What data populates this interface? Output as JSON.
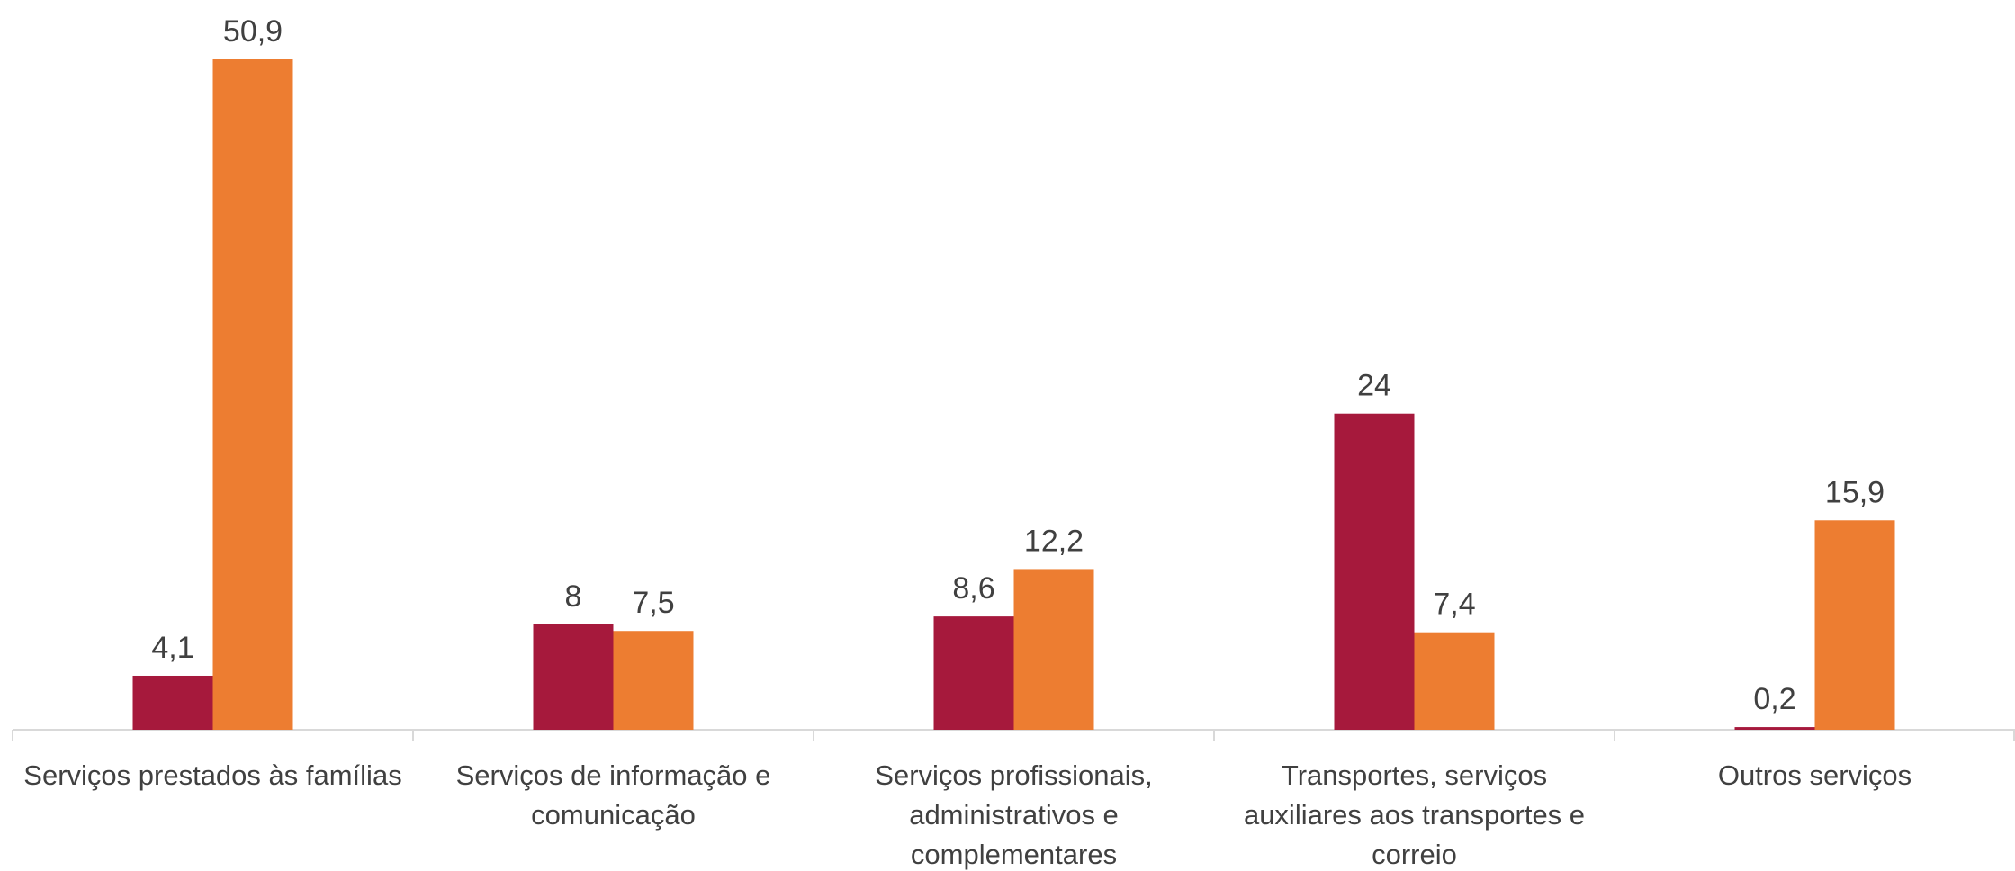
{
  "chart_data": {
    "type": "bar",
    "categories": [
      "Serviços prestados às famílias",
      "Serviços de informação e comunicação",
      "Serviços profissionais, administrativos e complementares",
      "Transportes, serviços auxiliares aos transportes e correio",
      "Outros serviços"
    ],
    "series": [
      {
        "color": "#a6193c",
        "values": [
          4.1,
          8,
          8.6,
          24,
          0.2
        ],
        "value_labels": [
          "4,1",
          "8",
          "8,6",
          "24",
          "0,2"
        ]
      },
      {
        "color": "#ed7d31",
        "values": [
          50.9,
          7.5,
          12.2,
          7.4,
          15.9
        ],
        "value_labels": [
          "50,9",
          "7,5",
          "12,2",
          "7,4",
          "15,9"
        ]
      }
    ]
  }
}
